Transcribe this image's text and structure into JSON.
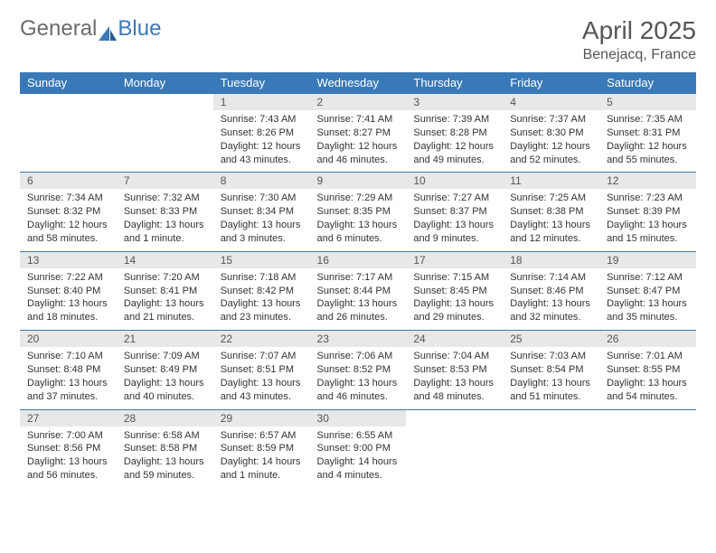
{
  "brand": {
    "part1": "General",
    "part2": "Blue"
  },
  "title": "April 2025",
  "location": "Benejacq, France",
  "header_bg": "#3a79b7",
  "daynum_bg": "#e8e8e8",
  "weekdays": [
    "Sunday",
    "Monday",
    "Tuesday",
    "Wednesday",
    "Thursday",
    "Friday",
    "Saturday"
  ],
  "first_weekday_index": 2,
  "days": [
    {
      "n": 1,
      "sunrise": "7:43 AM",
      "sunset": "8:26 PM",
      "daylight": "12 hours and 43 minutes."
    },
    {
      "n": 2,
      "sunrise": "7:41 AM",
      "sunset": "8:27 PM",
      "daylight": "12 hours and 46 minutes."
    },
    {
      "n": 3,
      "sunrise": "7:39 AM",
      "sunset": "8:28 PM",
      "daylight": "12 hours and 49 minutes."
    },
    {
      "n": 4,
      "sunrise": "7:37 AM",
      "sunset": "8:30 PM",
      "daylight": "12 hours and 52 minutes."
    },
    {
      "n": 5,
      "sunrise": "7:35 AM",
      "sunset": "8:31 PM",
      "daylight": "12 hours and 55 minutes."
    },
    {
      "n": 6,
      "sunrise": "7:34 AM",
      "sunset": "8:32 PM",
      "daylight": "12 hours and 58 minutes."
    },
    {
      "n": 7,
      "sunrise": "7:32 AM",
      "sunset": "8:33 PM",
      "daylight": "13 hours and 1 minute."
    },
    {
      "n": 8,
      "sunrise": "7:30 AM",
      "sunset": "8:34 PM",
      "daylight": "13 hours and 3 minutes."
    },
    {
      "n": 9,
      "sunrise": "7:29 AM",
      "sunset": "8:35 PM",
      "daylight": "13 hours and 6 minutes."
    },
    {
      "n": 10,
      "sunrise": "7:27 AM",
      "sunset": "8:37 PM",
      "daylight": "13 hours and 9 minutes."
    },
    {
      "n": 11,
      "sunrise": "7:25 AM",
      "sunset": "8:38 PM",
      "daylight": "13 hours and 12 minutes."
    },
    {
      "n": 12,
      "sunrise": "7:23 AM",
      "sunset": "8:39 PM",
      "daylight": "13 hours and 15 minutes."
    },
    {
      "n": 13,
      "sunrise": "7:22 AM",
      "sunset": "8:40 PM",
      "daylight": "13 hours and 18 minutes."
    },
    {
      "n": 14,
      "sunrise": "7:20 AM",
      "sunset": "8:41 PM",
      "daylight": "13 hours and 21 minutes."
    },
    {
      "n": 15,
      "sunrise": "7:18 AM",
      "sunset": "8:42 PM",
      "daylight": "13 hours and 23 minutes."
    },
    {
      "n": 16,
      "sunrise": "7:17 AM",
      "sunset": "8:44 PM",
      "daylight": "13 hours and 26 minutes."
    },
    {
      "n": 17,
      "sunrise": "7:15 AM",
      "sunset": "8:45 PM",
      "daylight": "13 hours and 29 minutes."
    },
    {
      "n": 18,
      "sunrise": "7:14 AM",
      "sunset": "8:46 PM",
      "daylight": "13 hours and 32 minutes."
    },
    {
      "n": 19,
      "sunrise": "7:12 AM",
      "sunset": "8:47 PM",
      "daylight": "13 hours and 35 minutes."
    },
    {
      "n": 20,
      "sunrise": "7:10 AM",
      "sunset": "8:48 PM",
      "daylight": "13 hours and 37 minutes."
    },
    {
      "n": 21,
      "sunrise": "7:09 AM",
      "sunset": "8:49 PM",
      "daylight": "13 hours and 40 minutes."
    },
    {
      "n": 22,
      "sunrise": "7:07 AM",
      "sunset": "8:51 PM",
      "daylight": "13 hours and 43 minutes."
    },
    {
      "n": 23,
      "sunrise": "7:06 AM",
      "sunset": "8:52 PM",
      "daylight": "13 hours and 46 minutes."
    },
    {
      "n": 24,
      "sunrise": "7:04 AM",
      "sunset": "8:53 PM",
      "daylight": "13 hours and 48 minutes."
    },
    {
      "n": 25,
      "sunrise": "7:03 AM",
      "sunset": "8:54 PM",
      "daylight": "13 hours and 51 minutes."
    },
    {
      "n": 26,
      "sunrise": "7:01 AM",
      "sunset": "8:55 PM",
      "daylight": "13 hours and 54 minutes."
    },
    {
      "n": 27,
      "sunrise": "7:00 AM",
      "sunset": "8:56 PM",
      "daylight": "13 hours and 56 minutes."
    },
    {
      "n": 28,
      "sunrise": "6:58 AM",
      "sunset": "8:58 PM",
      "daylight": "13 hours and 59 minutes."
    },
    {
      "n": 29,
      "sunrise": "6:57 AM",
      "sunset": "8:59 PM",
      "daylight": "14 hours and 1 minute."
    },
    {
      "n": 30,
      "sunrise": "6:55 AM",
      "sunset": "9:00 PM",
      "daylight": "14 hours and 4 minutes."
    }
  ],
  "labels": {
    "sunrise": "Sunrise:",
    "sunset": "Sunset:",
    "daylight": "Daylight:"
  }
}
